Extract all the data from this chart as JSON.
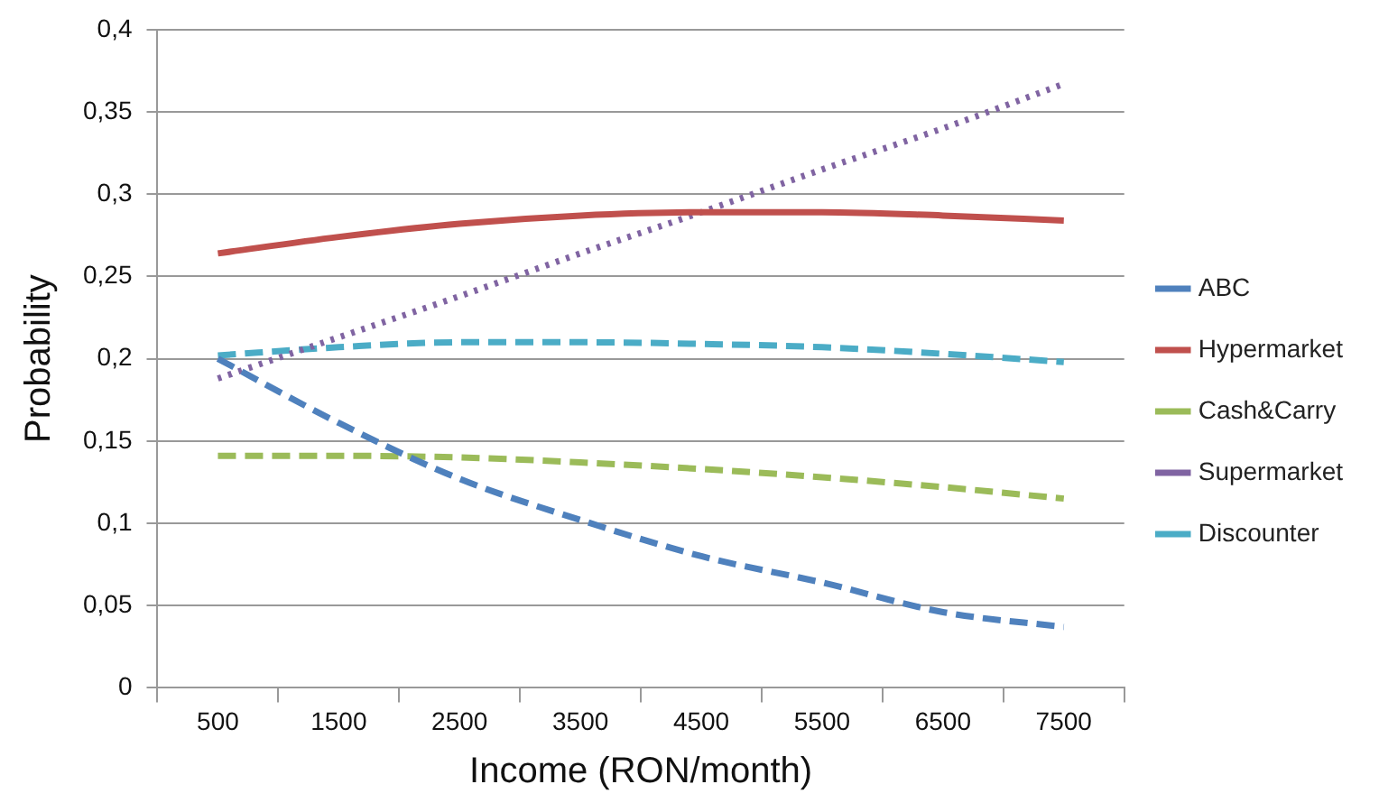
{
  "chart_data": {
    "type": "line",
    "xlabel": "Income (RON/month)",
    "ylabel": "Probability",
    "categories": [
      "500",
      "1500",
      "2500",
      "3500",
      "4500",
      "5500",
      "6500",
      "7500"
    ],
    "series": [
      {
        "name": "ABC",
        "color": "#4f81bd",
        "line_style": "dashed",
        "values": [
          0.2,
          0.161,
          0.127,
          0.102,
          0.08,
          0.064,
          0.046,
          0.037
        ]
      },
      {
        "name": "Hypermarket",
        "color": "#c0504d",
        "line_style": "solid",
        "values": [
          0.264,
          0.274,
          0.282,
          0.287,
          0.289,
          0.289,
          0.287,
          0.284
        ]
      },
      {
        "name": "Cash&Carry",
        "color": "#9bbb59",
        "line_style": "dashed",
        "values": [
          0.141,
          0.141,
          0.14,
          0.137,
          0.133,
          0.128,
          0.122,
          0.115
        ]
      },
      {
        "name": "Supermarket",
        "color": "#8064a2",
        "line_style": "dotted",
        "values": [
          0.188,
          0.213,
          0.238,
          0.264,
          0.289,
          0.315,
          0.34,
          0.367
        ]
      },
      {
        "name": "Discounter",
        "color": "#4bacc6",
        "line_style": "dashed",
        "values": [
          0.202,
          0.207,
          0.21,
          0.21,
          0.209,
          0.207,
          0.203,
          0.198
        ]
      }
    ],
    "ylim": [
      0,
      0.4
    ],
    "yticks": [
      0,
      {
        "value": 0.05,
        "label": "0,05"
      },
      {
        "value": 0.1,
        "label": "0,1"
      },
      {
        "value": 0.15,
        "label": "0,15"
      },
      {
        "value": 0.2,
        "label": "0,2"
      },
      {
        "value": 0.25,
        "label": "0,25"
      },
      {
        "value": 0.3,
        "label": "0,3"
      },
      {
        "value": 0.35,
        "label": "0,35"
      },
      {
        "value": 0.4,
        "label": "0,4"
      }
    ],
    "grid": "y",
    "legend": "right",
    "marker": "none"
  }
}
